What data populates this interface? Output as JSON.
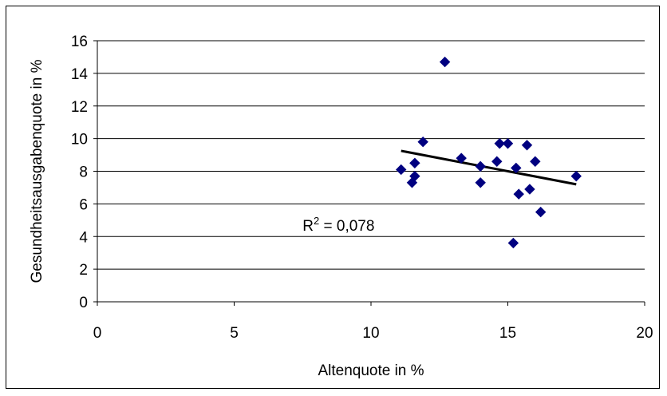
{
  "chart_data": {
    "type": "scatter",
    "title": "",
    "xlabel": "Altenquote in %",
    "ylabel": "Gesundheitsausgabenquote in %",
    "xlim": [
      0,
      20
    ],
    "ylim": [
      0,
      16
    ],
    "x_ticks": [
      "0",
      "5",
      "10",
      "15",
      "20"
    ],
    "y_ticks": [
      "0",
      "2",
      "4",
      "6",
      "8",
      "10",
      "12",
      "14",
      "16"
    ],
    "grid": "horizontal",
    "legend": "none",
    "marker_color": "#000080",
    "trendline_color": "#000000",
    "points": [
      {
        "x": 11.1,
        "y": 8.1
      },
      {
        "x": 11.5,
        "y": 7.3
      },
      {
        "x": 11.6,
        "y": 7.7
      },
      {
        "x": 11.6,
        "y": 8.5
      },
      {
        "x": 11.9,
        "y": 9.8
      },
      {
        "x": 12.7,
        "y": 14.7
      },
      {
        "x": 13.3,
        "y": 8.8
      },
      {
        "x": 14.0,
        "y": 7.3
      },
      {
        "x": 14.0,
        "y": 8.3
      },
      {
        "x": 14.6,
        "y": 8.6
      },
      {
        "x": 14.7,
        "y": 9.7
      },
      {
        "x": 15.0,
        "y": 9.7
      },
      {
        "x": 15.2,
        "y": 3.6
      },
      {
        "x": 15.3,
        "y": 8.2
      },
      {
        "x": 15.4,
        "y": 6.6
      },
      {
        "x": 15.7,
        "y": 9.6
      },
      {
        "x": 15.8,
        "y": 6.9
      },
      {
        "x": 16.0,
        "y": 8.6
      },
      {
        "x": 16.2,
        "y": 5.5
      },
      {
        "x": 17.5,
        "y": 7.7
      }
    ],
    "trendline": {
      "x": [
        11.1,
        17.5
      ],
      "y": [
        9.25,
        7.2
      ]
    },
    "annotation": {
      "base": "R",
      "superscript": "2",
      "text": " = 0,078",
      "x": 7.5,
      "y": 4.7
    }
  }
}
